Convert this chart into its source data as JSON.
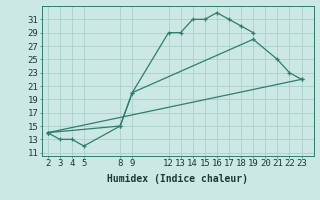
{
  "line1_x": [
    2,
    3,
    4,
    5,
    8,
    9,
    12,
    13,
    14,
    15,
    16,
    17,
    18,
    19
  ],
  "line1_y": [
    14,
    13,
    13,
    12,
    15,
    20,
    29,
    29,
    31,
    31,
    32,
    31,
    30,
    29
  ],
  "line2_x": [
    2,
    8,
    9,
    19,
    21,
    22,
    23
  ],
  "line2_y": [
    14,
    15,
    20,
    28,
    25,
    23,
    22
  ],
  "line3_x": [
    2,
    23
  ],
  "line3_y": [
    14,
    22
  ],
  "color": "#2e7d6e",
  "bg_color": "#cce8e4",
  "grid_color": "#aacfcb",
  "xlabel": "Humidex (Indice chaleur)",
  "xlim": [
    1.5,
    24
  ],
  "ylim": [
    10.5,
    33
  ],
  "xticks": [
    2,
    3,
    4,
    5,
    8,
    9,
    12,
    13,
    14,
    15,
    16,
    17,
    18,
    19,
    20,
    21,
    22,
    23
  ],
  "yticks": [
    11,
    13,
    15,
    17,
    19,
    21,
    23,
    25,
    27,
    29,
    31
  ],
  "marker": "+",
  "linewidth": 0.9,
  "markersize": 3.5,
  "font_size": 6.5
}
